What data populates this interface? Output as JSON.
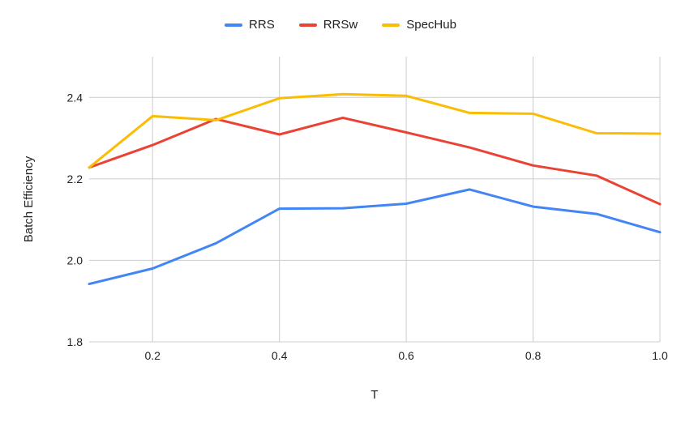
{
  "chart_data": {
    "type": "line",
    "title": "",
    "xlabel": "T",
    "ylabel": "Batch Efficiency",
    "xlim": [
      0.1,
      1.0
    ],
    "ylim": [
      1.8,
      2.5
    ],
    "xticks": [
      0.2,
      0.4,
      0.6,
      0.8,
      1.0
    ],
    "xtick_labels": [
      "0.2",
      "0.4",
      "0.6",
      "0.8",
      "1.0"
    ],
    "yticks": [
      1.8,
      2.0,
      2.2,
      2.4
    ],
    "ytick_labels": [
      "1.8",
      "2.0",
      "2.2",
      "2.4"
    ],
    "grid": true,
    "legend_position": "top-center",
    "x": [
      0.1,
      0.2,
      0.3,
      0.4,
      0.5,
      0.6,
      0.7,
      0.8,
      0.9,
      1.0
    ],
    "series": [
      {
        "name": "RRS",
        "color": "#4285F4",
        "values": [
          1.942,
          1.98,
          2.042,
          2.127,
          2.128,
          2.139,
          2.174,
          2.132,
          2.114,
          2.069
        ]
      },
      {
        "name": "RRSw",
        "color": "#EA4335",
        "values": [
          2.228,
          2.283,
          2.347,
          2.309,
          2.35,
          2.314,
          2.277,
          2.233,
          2.208,
          2.138
        ]
      },
      {
        "name": "SpecHub",
        "color": "#FBBC04",
        "values": [
          2.228,
          2.354,
          2.344,
          2.398,
          2.408,
          2.404,
          2.362,
          2.36,
          2.312,
          2.311
        ]
      }
    ]
  }
}
